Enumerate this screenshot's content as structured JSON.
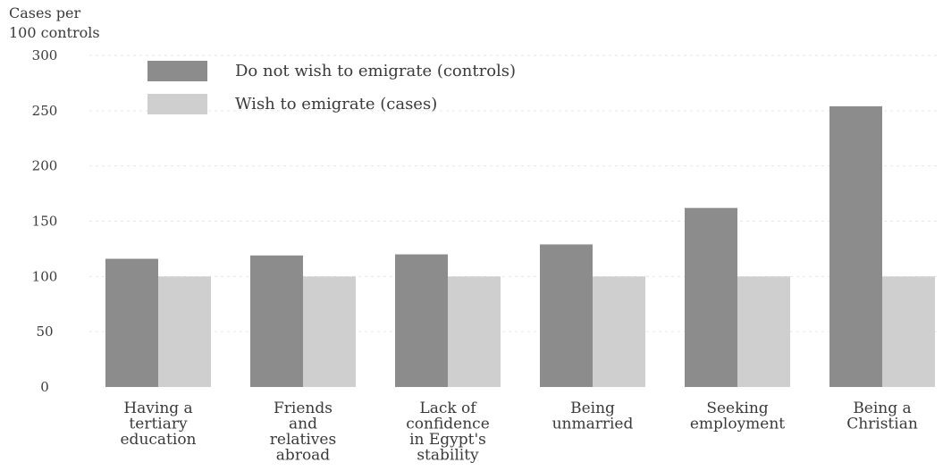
{
  "chart_data": {
    "type": "bar",
    "title": "",
    "ylabel": "Cases per 100 controls",
    "xlabel": "",
    "ylim": [
      0,
      300
    ],
    "yticks": [
      0,
      50,
      100,
      150,
      200,
      250,
      300
    ],
    "grid": true,
    "legend_position": "top-left",
    "categories": [
      "Having a tertiary education",
      "Friends and relatives abroad",
      "Lack of confidence in Egypt's stability",
      "Being unmarried",
      "Seeking employment",
      "Being a Christian"
    ],
    "category_lines": [
      [
        "Having a",
        "tertiary",
        "education"
      ],
      [
        "Friends",
        "and",
        "relatives",
        "abroad"
      ],
      [
        "Lack of",
        "confidence",
        "in Egypt's",
        "stability"
      ],
      [
        "Being",
        "unmarried"
      ],
      [
        "Seeking",
        "employment"
      ],
      [
        "Being a",
        "Christian"
      ]
    ],
    "series": [
      {
        "name": "Do not wish to emigrate (controls)",
        "color": "#8c8c8c",
        "values": [
          116,
          119,
          120,
          129,
          162,
          254
        ]
      },
      {
        "name": "Wish to emigrate (cases)",
        "color": "#cfcfcf",
        "values": [
          100,
          100,
          100,
          100,
          100,
          100
        ]
      }
    ]
  }
}
